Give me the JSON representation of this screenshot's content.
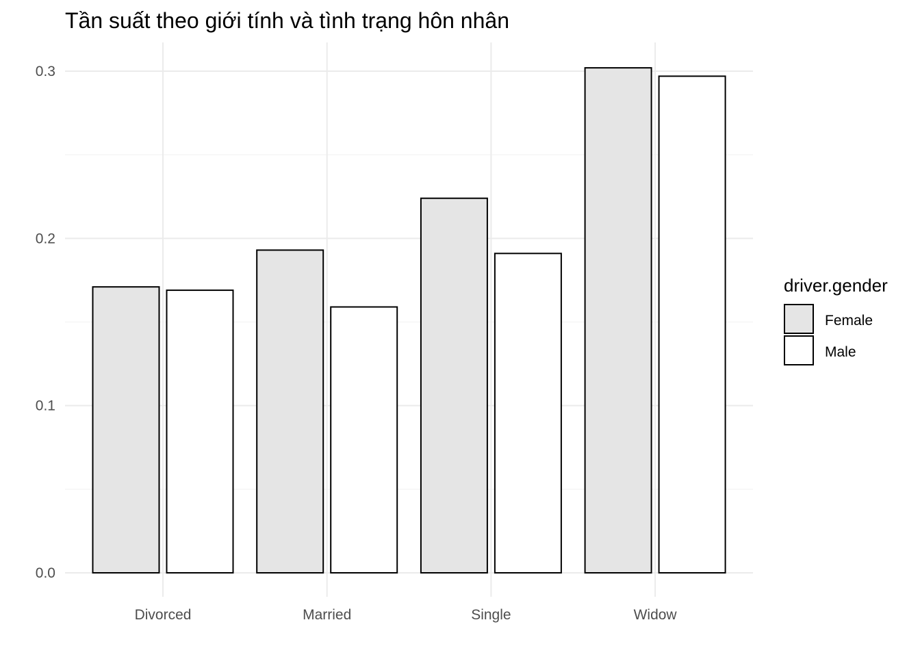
{
  "chart_data": {
    "type": "bar",
    "title": "Tần suất theo giới tính và tình trạng hôn nhân",
    "xlabel": "",
    "ylabel": "",
    "categories": [
      "Divorced",
      "Married",
      "Single",
      "Widow"
    ],
    "series": [
      {
        "name": "Female",
        "values": [
          0.171,
          0.193,
          0.224,
          0.302
        ],
        "color": "#e5e5e5"
      },
      {
        "name": "Male",
        "values": [
          0.169,
          0.159,
          0.191,
          0.297
        ],
        "color": "#ffffff"
      }
    ],
    "ylim": [
      0,
      0.31
    ],
    "y_ticks": [
      0.0,
      0.1,
      0.2,
      0.3
    ],
    "y_tick_labels": [
      "0.0",
      "0.1",
      "0.2",
      "0.3"
    ],
    "legend": {
      "title": "driver.gender",
      "position": "right"
    },
    "grid": true
  }
}
